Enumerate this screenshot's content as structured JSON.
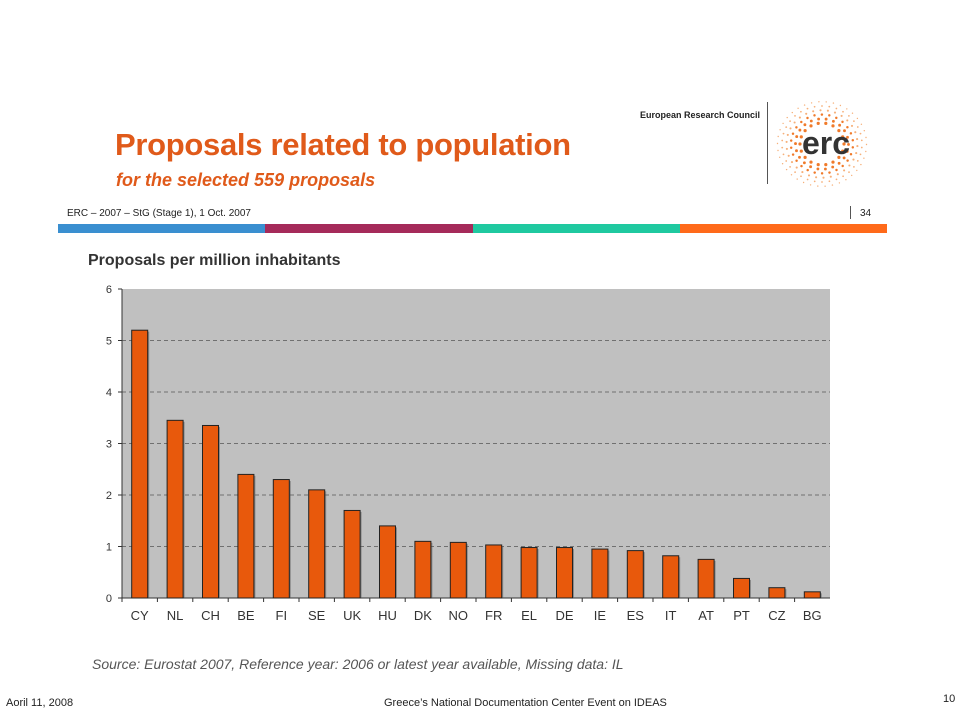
{
  "slide": {
    "title": "Proposals related to population",
    "subtitle": "for the selected 559 proposals",
    "organization": "European Research Council",
    "logo_text": "erc",
    "meta": "ERC – 2007 – StG (Stage 1), 1 Oct. 2007",
    "page_number": "34",
    "color_bar": [
      "#3a8fd0",
      "#a52a5a",
      "#1fc9a0",
      "#ff6a1a"
    ],
    "title_color": "#e05a1a"
  },
  "chart_data": {
    "type": "bar",
    "title": "Proposals per million inhabitants",
    "categories": [
      "CY",
      "NL",
      "CH",
      "BE",
      "FI",
      "SE",
      "UK",
      "HU",
      "DK",
      "NO",
      "FR",
      "EL",
      "DE",
      "IE",
      "ES",
      "IT",
      "AT",
      "PT",
      "CZ",
      "BG"
    ],
    "values": [
      5.2,
      3.45,
      3.35,
      2.4,
      2.3,
      2.1,
      1.7,
      1.4,
      1.1,
      1.08,
      1.03,
      0.98,
      0.98,
      0.95,
      0.92,
      0.82,
      0.75,
      0.38,
      0.2,
      0.12
    ],
    "yticks": [
      0,
      1,
      2,
      3,
      4,
      5,
      6
    ],
    "ylim": [
      0,
      6
    ],
    "grid": true,
    "bar_color": "#e8590c",
    "plot_background": "#c0c0c0",
    "source": "Source: Eurostat 2007, Reference year: 2006 or latest year available, Missing data: IL"
  },
  "footer": {
    "date": "Aoril 11, 2008",
    "event": "Greece’s National Documentation Center Event on IDEAS",
    "slide_number": "10"
  }
}
